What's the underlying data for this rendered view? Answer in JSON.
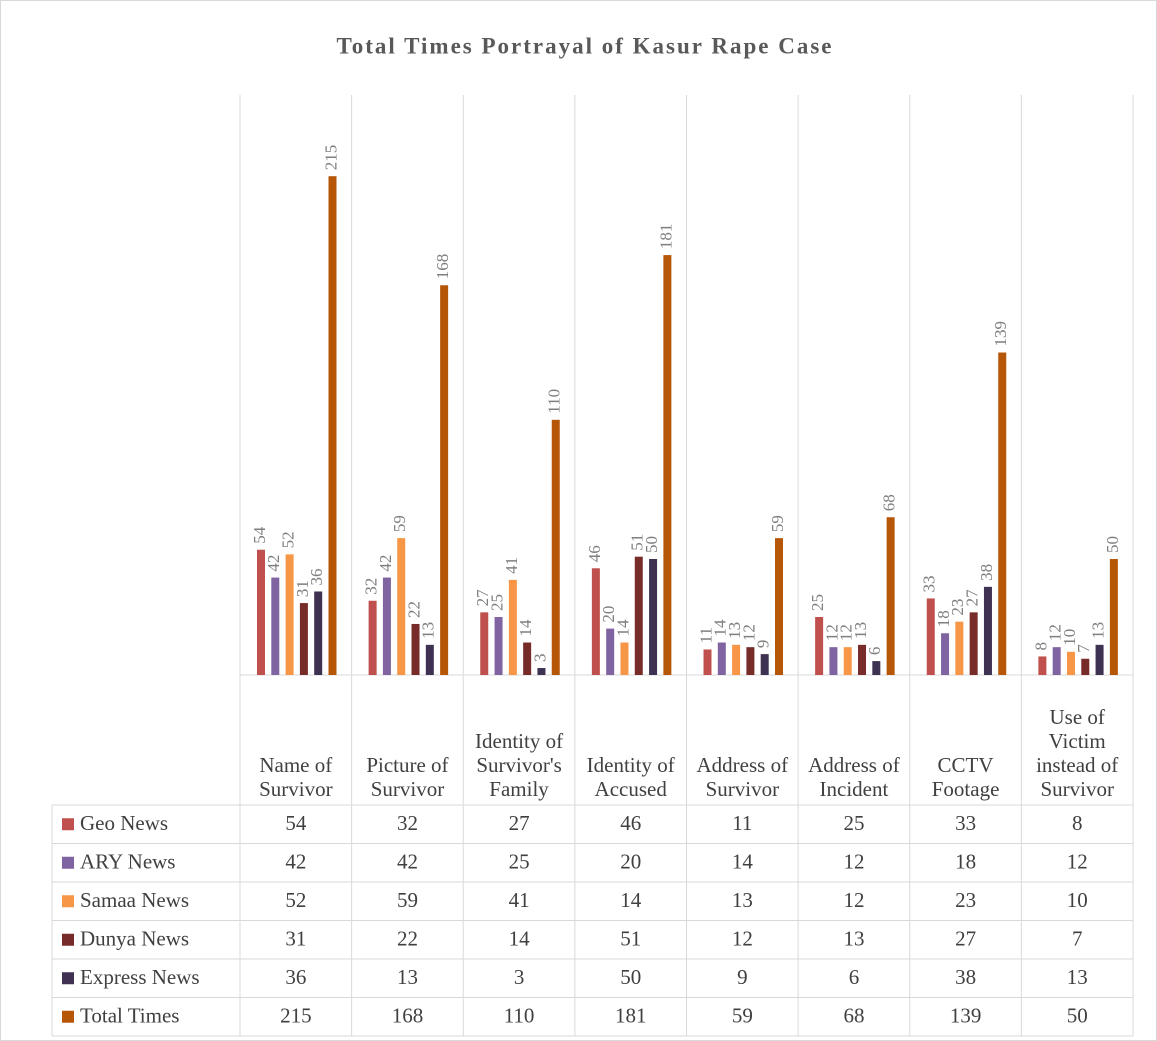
{
  "chart_data": {
    "type": "bar",
    "title": "Total Times Portrayal of Kasur Rape Case",
    "categories": [
      "Name of Survivor",
      "Picture of Survivor",
      "Identity of Survivor's Family",
      "Identity of Accused",
      "Address of Survivor",
      "Address of Incident",
      "CCTV Footage",
      "Use of Victim instead of Survivor"
    ],
    "series": [
      {
        "name": "Geo News",
        "color": "#c0504d",
        "values": [
          54,
          32,
          27,
          46,
          11,
          25,
          33,
          8
        ]
      },
      {
        "name": "ARY News",
        "color": "#8064a2",
        "values": [
          42,
          42,
          25,
          20,
          14,
          12,
          18,
          12
        ]
      },
      {
        "name": "Samaa News",
        "color": "#f79646",
        "values": [
          52,
          59,
          41,
          14,
          13,
          12,
          23,
          10
        ]
      },
      {
        "name": "Dunya News",
        "color": "#772c2a",
        "values": [
          31,
          22,
          14,
          51,
          12,
          13,
          27,
          7
        ]
      },
      {
        "name": "Express News",
        "color": "#3f3151",
        "values": [
          36,
          13,
          3,
          50,
          9,
          6,
          38,
          13
        ]
      },
      {
        "name": "Total Times",
        "color": "#b65708",
        "values": [
          215,
          168,
          110,
          181,
          59,
          68,
          139,
          50
        ]
      }
    ],
    "ylim": [
      0,
      250
    ],
    "grid": true,
    "data_table": true
  }
}
